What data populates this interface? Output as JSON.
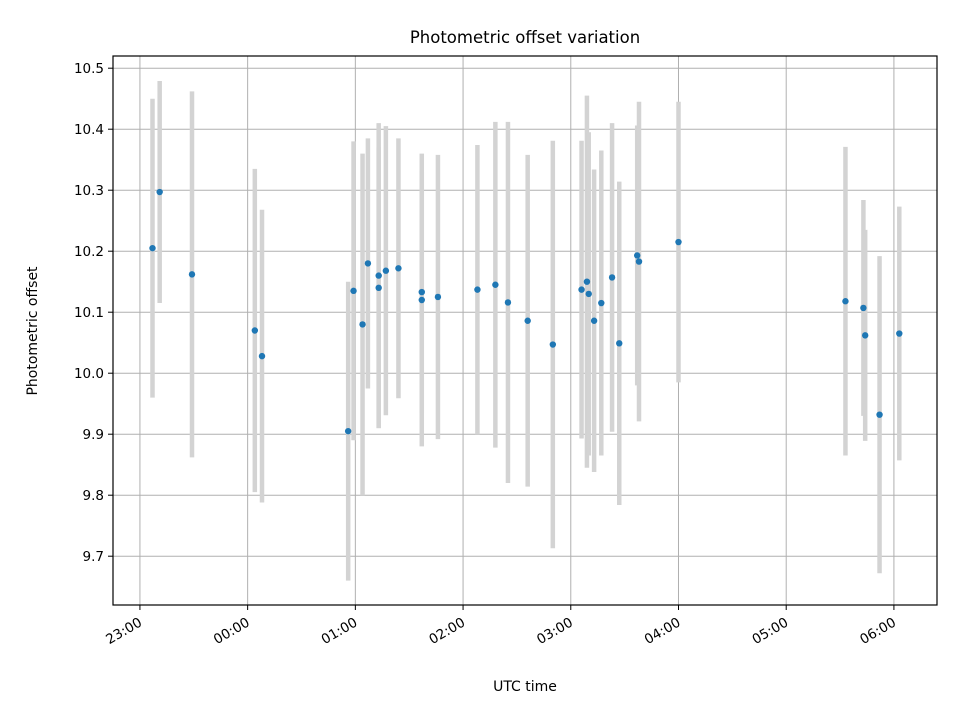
{
  "chart_data": {
    "type": "scatter",
    "title": "Photometric offset variation",
    "xlabel": "UTC time",
    "ylabel": "Photometric offset",
    "grid": true,
    "x_ticks": [
      "23:00",
      "00:00",
      "01:00",
      "02:00",
      "03:00",
      "04:00",
      "05:00",
      "06:00"
    ],
    "x_tick_hours": [
      23,
      24,
      25,
      26,
      27,
      28,
      29,
      30
    ],
    "xlim_hours": [
      22.75,
      30.4
    ],
    "y_ticks": [
      "9.7",
      "9.8",
      "9.9",
      "10.0",
      "10.1",
      "10.2",
      "10.3",
      "10.4",
      "10.5"
    ],
    "y_tick_values": [
      9.7,
      9.8,
      9.9,
      10.0,
      10.1,
      10.2,
      10.3,
      10.4,
      10.5
    ],
    "ylim": [
      9.62,
      10.52
    ],
    "point_color": "#1f77b4",
    "errorbar_color": "#d3d3d3",
    "points": [
      {
        "time": "23:07",
        "y": 10.205,
        "err": 0.245
      },
      {
        "time": "23:11",
        "y": 10.297,
        "err": 0.182
      },
      {
        "time": "23:29",
        "y": 10.162,
        "err": 0.3
      },
      {
        "time": "00:04",
        "y": 10.07,
        "err": 0.265
      },
      {
        "time": "00:08",
        "y": 10.028,
        "err": 0.24
      },
      {
        "time": "00:56",
        "y": 9.905,
        "err": 0.245
      },
      {
        "time": "00:59",
        "y": 10.135,
        "err": 0.245
      },
      {
        "time": "01:04",
        "y": 10.08,
        "err": 0.28
      },
      {
        "time": "01:07",
        "y": 10.18,
        "err": 0.205
      },
      {
        "time": "01:13",
        "y": 10.16,
        "err": 0.25
      },
      {
        "time": "01:13",
        "y": 10.14,
        "err": 0.23
      },
      {
        "time": "01:17",
        "y": 10.168,
        "err": 0.237
      },
      {
        "time": "01:24",
        "y": 10.172,
        "err": 0.213
      },
      {
        "time": "01:37",
        "y": 10.12,
        "err": 0.24
      },
      {
        "time": "01:37",
        "y": 10.133,
        "err": 0.198
      },
      {
        "time": "01:46",
        "y": 10.125,
        "err": 0.233
      },
      {
        "time": "02:08",
        "y": 10.137,
        "err": 0.237
      },
      {
        "time": "02:18",
        "y": 10.145,
        "err": 0.267
      },
      {
        "time": "02:25",
        "y": 10.116,
        "err": 0.296
      },
      {
        "time": "02:36",
        "y": 10.086,
        "err": 0.272
      },
      {
        "time": "02:50",
        "y": 10.047,
        "err": 0.334
      },
      {
        "time": "03:06",
        "y": 10.137,
        "err": 0.244
      },
      {
        "time": "03:09",
        "y": 10.15,
        "err": 0.305
      },
      {
        "time": "03:10",
        "y": 10.13,
        "err": 0.265
      },
      {
        "time": "03:13",
        "y": 10.086,
        "err": 0.248
      },
      {
        "time": "03:17",
        "y": 10.115,
        "err": 0.25
      },
      {
        "time": "03:23",
        "y": 10.157,
        "err": 0.253
      },
      {
        "time": "03:27",
        "y": 10.049,
        "err": 0.265
      },
      {
        "time": "03:37",
        "y": 10.193,
        "err": 0.213
      },
      {
        "time": "03:38",
        "y": 10.183,
        "err": 0.262
      },
      {
        "time": "04:00",
        "y": 10.215,
        "err": 0.23
      },
      {
        "time": "05:33",
        "y": 10.118,
        "err": 0.253
      },
      {
        "time": "05:43",
        "y": 10.107,
        "err": 0.177
      },
      {
        "time": "05:44",
        "y": 10.062,
        "err": 0.173
      },
      {
        "time": "05:52",
        "y": 9.932,
        "err": 0.26
      },
      {
        "time": "06:03",
        "y": 10.065,
        "err": 0.208
      }
    ]
  }
}
